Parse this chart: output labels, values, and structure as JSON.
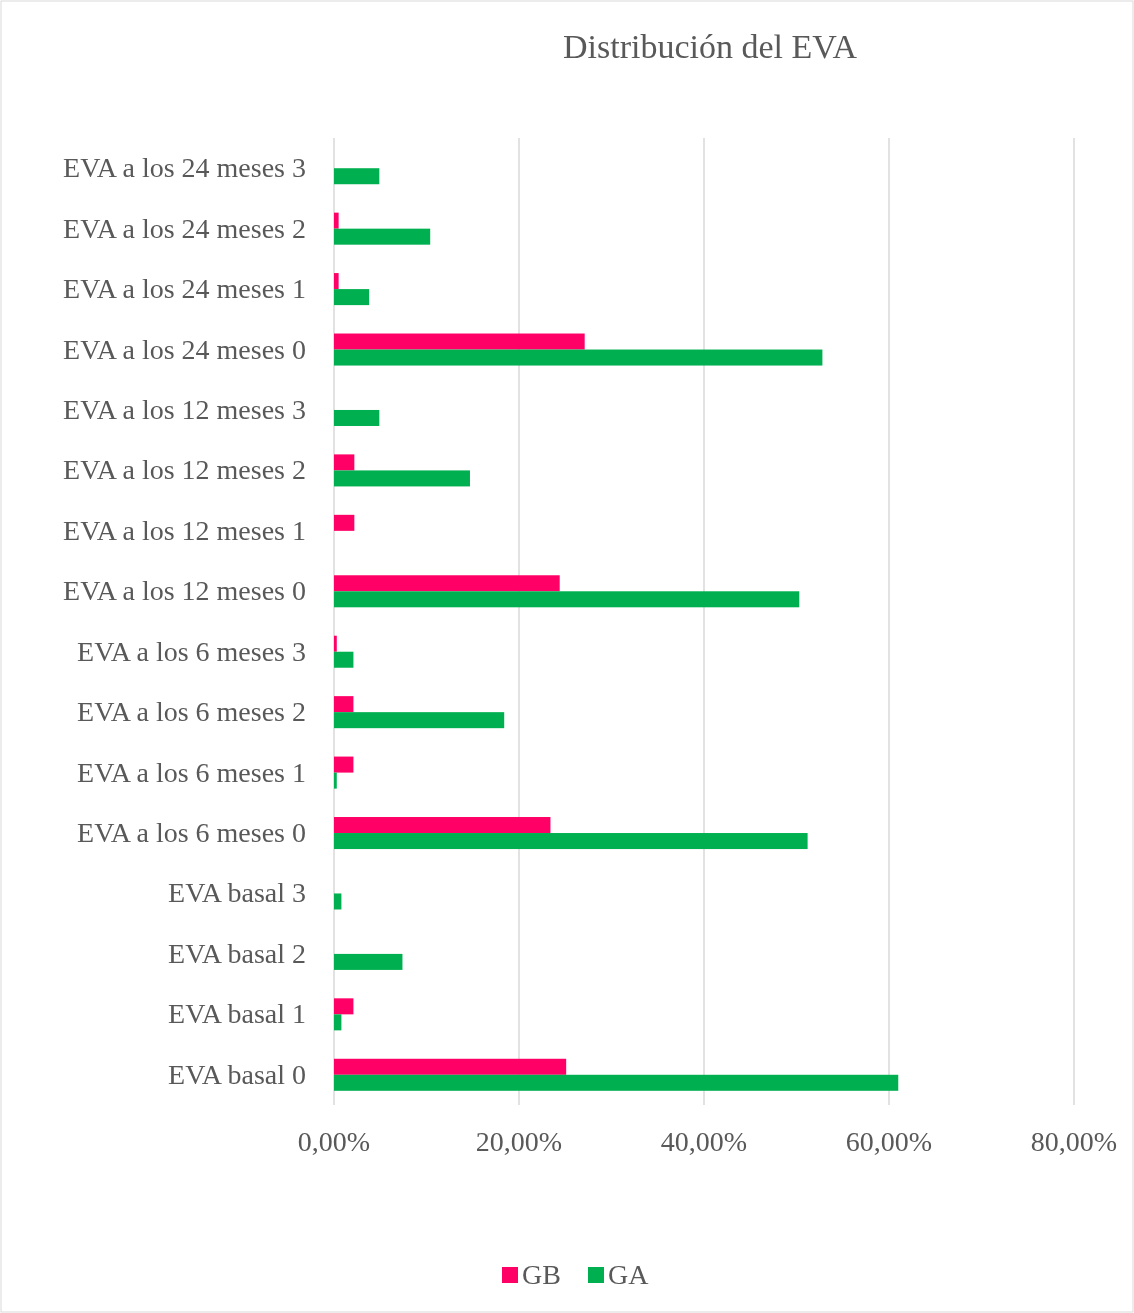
{
  "chart_data": {
    "type": "bar",
    "orientation": "horizontal",
    "title": "Distribución del EVA",
    "categories": [
      "EVA a los 24 meses 3",
      "EVA a los 24 meses 2",
      "EVA a los 24 meses 1",
      "EVA a los 24 meses 0",
      "EVA a los 12 meses 3",
      "EVA a los 12 meses 2",
      "EVA a los 12 meses 1",
      "EVA a los 12 meses 0",
      "EVA a los 6 meses 3",
      "EVA a los 6 meses 2",
      "EVA a los 6 meses 1",
      "EVA a los 6 meses 0",
      "EVA basal 3",
      "EVA basal 2",
      "EVA basal 1",
      "EVA basal 0"
    ],
    "series": [
      {
        "name": "GB",
        "color": "#ff0066",
        "values": [
          0,
          0.5,
          0.5,
          27.1,
          0,
          2.2,
          2.2,
          24.4,
          0.3,
          2.1,
          2.1,
          23.4,
          0,
          0,
          2.1,
          25.1
        ]
      },
      {
        "name": "GA",
        "color": "#00b050",
        "values": [
          4.9,
          10.4,
          3.8,
          52.8,
          4.9,
          14.7,
          0,
          50.3,
          2.1,
          18.4,
          0.3,
          51.2,
          0.8,
          7.4,
          0.8,
          61.0
        ]
      }
    ],
    "xlim": [
      0,
      80
    ],
    "xticks": [
      {
        "value": 0,
        "label": "0,00%"
      },
      {
        "value": 20,
        "label": "20,00%"
      },
      {
        "value": 40,
        "label": "40,00%"
      },
      {
        "value": 60,
        "label": "60,00%"
      },
      {
        "value": 80,
        "label": "80,00%"
      }
    ],
    "grid": "x",
    "legend": "bottom"
  }
}
